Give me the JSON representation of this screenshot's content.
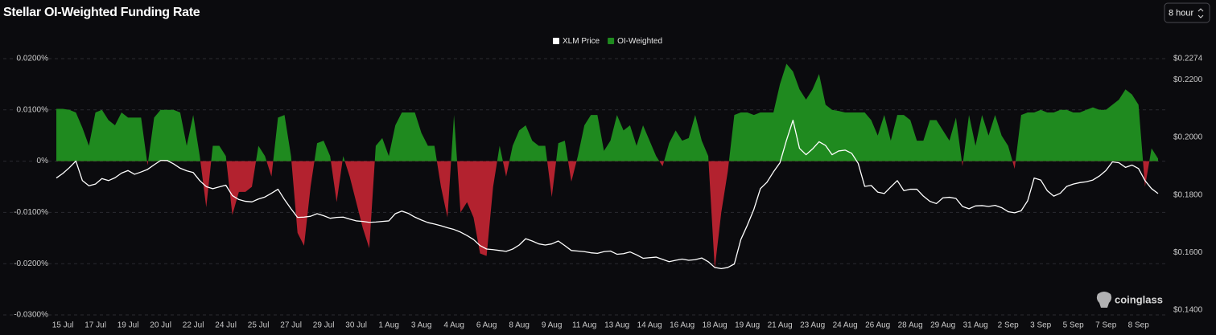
{
  "interval_selector": "8 hour",
  "brand": "coinglass",
  "chart_data": {
    "type": "area",
    "title": "Stellar OI-Weighted Funding Rate",
    "categories": [
      null,
      "15 Jul",
      null,
      null,
      null,
      null,
      "17 Jul",
      null,
      null,
      null,
      null,
      "19 Jul",
      null,
      null,
      null,
      null,
      "20 Jul",
      null,
      null,
      null,
      null,
      "22 Jul",
      null,
      null,
      null,
      null,
      "24 Jul",
      null,
      null,
      null,
      null,
      "25 Jul",
      null,
      null,
      null,
      null,
      "27 Jul",
      null,
      null,
      null,
      null,
      "29 Jul",
      null,
      null,
      null,
      null,
      "30 Jul",
      null,
      null,
      null,
      null,
      "1 Aug",
      null,
      null,
      null,
      null,
      "3 Aug",
      null,
      null,
      null,
      null,
      "4 Aug",
      null,
      null,
      null,
      null,
      "6 Aug",
      null,
      null,
      null,
      null,
      "8 Aug",
      null,
      null,
      null,
      null,
      "9 Aug",
      null,
      null,
      null,
      null,
      "11 Aug",
      null,
      null,
      null,
      null,
      "13 Aug",
      null,
      null,
      null,
      null,
      "14 Aug",
      null,
      null,
      null,
      null,
      "16 Aug",
      null,
      null,
      null,
      null,
      "18 Aug",
      null,
      null,
      null,
      null,
      "19 Aug",
      null,
      null,
      null,
      null,
      "21 Aug",
      null,
      null,
      null,
      null,
      "23 Aug",
      null,
      null,
      null,
      null,
      "24 Aug",
      null,
      null,
      null,
      null,
      "26 Aug",
      null,
      null,
      null,
      null,
      "28 Aug",
      null,
      null,
      null,
      null,
      "29 Aug",
      null,
      null,
      null,
      null,
      "31 Aug",
      null,
      null,
      null,
      null,
      "2 Sep",
      null,
      null,
      null,
      null,
      "3 Sep",
      null,
      null,
      null,
      null,
      "5 Sep",
      null,
      null,
      null,
      null,
      "7 Sep",
      null,
      null,
      null,
      null,
      "8 Sep",
      null,
      null,
      null
    ],
    "series": [
      {
        "name": "XLM Price",
        "type": "line",
        "axis": "y2",
        "color": "#ffffff",
        "values": [
          0.1859,
          0.1875,
          0.1895,
          0.1918,
          0.185,
          0.1832,
          0.1838,
          0.1857,
          0.185,
          0.186,
          0.1876,
          0.1885,
          0.1872,
          0.188,
          0.1889,
          0.1905,
          0.192,
          0.192,
          0.1908,
          0.1893,
          0.1884,
          0.1878,
          0.185,
          0.1829,
          0.1822,
          0.1828,
          0.1834,
          0.1798,
          0.1784,
          0.1778,
          0.1776,
          0.1786,
          0.1793,
          0.1806,
          0.182,
          0.1784,
          0.1752,
          0.1722,
          0.1723,
          0.1726,
          0.1735,
          0.1728,
          0.1719,
          0.1722,
          0.1723,
          0.1716,
          0.171,
          0.1708,
          0.1705,
          0.1706,
          0.1708,
          0.171,
          0.1735,
          0.1744,
          0.1736,
          0.1723,
          0.1713,
          0.1704,
          0.1699,
          0.1693,
          0.1686,
          0.168,
          0.1671,
          0.1659,
          0.1645,
          0.1624,
          0.1612,
          0.161,
          0.1607,
          0.1604,
          0.1612,
          0.1626,
          0.1648,
          0.164,
          0.163,
          0.1626,
          0.163,
          0.164,
          0.1624,
          0.1607,
          0.1605,
          0.1603,
          0.1599,
          0.1597,
          0.1603,
          0.1605,
          0.1594,
          0.1596,
          0.1602,
          0.1592,
          0.158,
          0.1582,
          0.1584,
          0.1576,
          0.1568,
          0.1573,
          0.1577,
          0.1573,
          0.1575,
          0.1581,
          0.1568,
          0.1548,
          0.1544,
          0.1548,
          0.156,
          0.1645,
          0.1695,
          0.175,
          0.1822,
          0.1844,
          0.188,
          0.1912,
          0.199,
          0.206,
          0.1962,
          0.194,
          0.196,
          0.1985,
          0.1972,
          0.194,
          0.1953,
          0.1956,
          0.1945,
          0.191,
          0.183,
          0.1833,
          0.181,
          0.1805,
          0.1828,
          0.185,
          0.1815,
          0.182,
          0.182,
          0.1796,
          0.1778,
          0.177,
          0.179,
          0.1792,
          0.1788,
          0.176,
          0.1752,
          0.1762,
          0.1763,
          0.176,
          0.1764,
          0.1756,
          0.1742,
          0.1738,
          0.1745,
          0.178,
          0.1859,
          0.1852,
          0.1815,
          0.1796,
          0.1806,
          0.183,
          0.1838,
          0.1843,
          0.1846,
          0.1852,
          0.1866,
          0.1885,
          0.1915,
          0.1912,
          0.1896,
          0.1904,
          0.1892,
          0.185,
          0.1822,
          0.1805
        ]
      },
      {
        "name": "OI-Weighted",
        "type": "area",
        "color": "#1f8a1f",
        "negative_color": "#b3222f",
        "values": [
          0.0102,
          0.0102,
          0.01,
          0.0095,
          0.0065,
          0.003,
          0.0095,
          0.01,
          0.008,
          0.007,
          0.0095,
          0.0085,
          0.0085,
          0.0085,
          -0.0008,
          0.0085,
          0.01,
          0.01,
          0.01,
          0.0095,
          0.003,
          0.009,
          0.001,
          -0.009,
          0.003,
          0.003,
          0.001,
          -0.0105,
          -0.006,
          -0.006,
          -0.005,
          0.003,
          0.001,
          -0.003,
          0.0085,
          0.009,
          0.001,
          -0.014,
          -0.0165,
          -0.005,
          0.0035,
          0.004,
          0.001,
          -0.008,
          0.001,
          -0.003,
          -0.008,
          -0.013,
          -0.017,
          0.003,
          0.0045,
          0.001,
          0.007,
          0.0095,
          0.0095,
          0.0095,
          0.0055,
          0.003,
          0.003,
          -0.005,
          -0.011,
          0.009,
          -0.01,
          -0.008,
          -0.011,
          -0.018,
          -0.0185,
          -0.005,
          0.003,
          -0.003,
          0.003,
          0.006,
          0.007,
          0.004,
          0.003,
          0.003,
          -0.007,
          0.0035,
          0.004,
          -0.004,
          0.001,
          0.007,
          0.009,
          0.009,
          0.002,
          0.004,
          0.009,
          0.006,
          0.007,
          0.003,
          0.007,
          0.004,
          0.001,
          -0.001,
          0.0035,
          0.006,
          0.004,
          0.0045,
          0.009,
          0.004,
          0.001,
          -0.021,
          -0.01,
          -0.002,
          0.009,
          0.0095,
          0.0095,
          0.009,
          0.0095,
          0.0095,
          0.0095,
          0.015,
          0.019,
          0.0175,
          0.014,
          0.012,
          0.014,
          0.017,
          0.011,
          0.01,
          0.0098,
          0.0095,
          0.0095,
          0.0095,
          0.0095,
          0.008,
          0.005,
          0.009,
          0.004,
          0.009,
          0.009,
          0.008,
          0.004,
          0.004,
          0.008,
          0.008,
          0.006,
          0.004,
          0.0085,
          -0.001,
          0.009,
          0.003,
          0.009,
          0.005,
          0.009,
          0.005,
          0.003,
          -0.0015,
          0.009,
          0.0095,
          0.0095,
          0.01,
          0.0095,
          0.0095,
          0.01,
          0.01,
          0.0095,
          0.0095,
          0.01,
          0.0105,
          0.01,
          0.01,
          0.011,
          0.012,
          0.014,
          0.013,
          0.011,
          -0.005,
          0.0025,
          0.0005
        ]
      }
    ],
    "ylim": [
      -0.03,
      0.02
    ],
    "yticks": [
      {
        "value": 0.02,
        "label": "0.0200%"
      },
      {
        "value": 0.01,
        "label": "0.0100%"
      },
      {
        "value": 0,
        "label": "0%"
      },
      {
        "value": -0.01,
        "label": "-0.0100%"
      },
      {
        "value": -0.02,
        "label": "-0.0200%"
      },
      {
        "value": -0.03,
        "label": "-0.0300%"
      }
    ],
    "y2lim": [
      0.1383,
      0.2274
    ],
    "y2ticks": [
      {
        "value": 0.2274,
        "label": "$0.2274"
      },
      {
        "value": 0.22,
        "label": "$0.2200"
      },
      {
        "value": 0.2,
        "label": "$0.2000"
      },
      {
        "value": 0.18,
        "label": "$0.1800"
      },
      {
        "value": 0.16,
        "label": "$0.1600"
      },
      {
        "value": 0.14,
        "label": "$0.1400"
      }
    ],
    "grid": true,
    "legend": "top"
  }
}
